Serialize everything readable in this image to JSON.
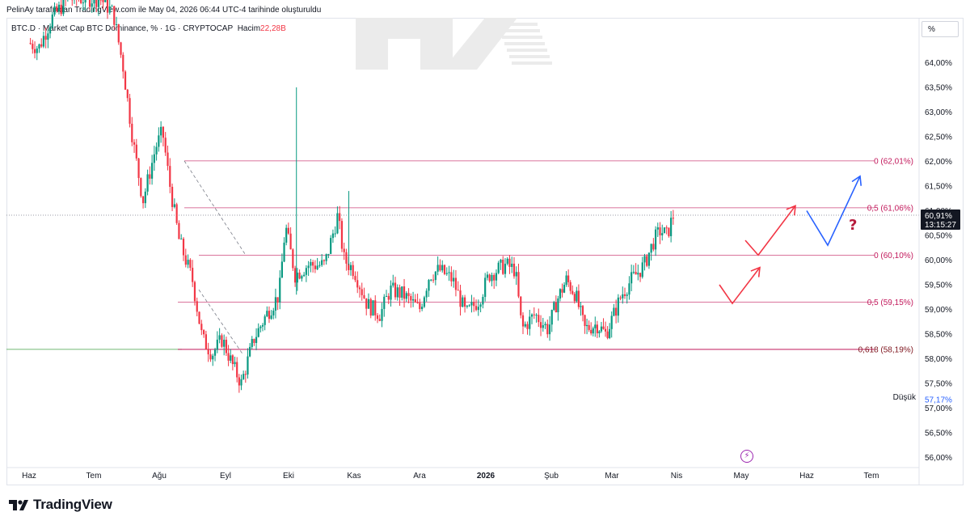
{
  "header": {
    "attribution": "PelinAy tarafından TradingView.com ile May 04, 2026 06:44 UTC-4 tarihinde oluşturuldu"
  },
  "legend": {
    "symbol": "BTC.D · Market Cap BTC Dominance, % · 1G · CRYPTOCAP",
    "volume_label": "Hacim",
    "volume_value": "22,28B"
  },
  "scale_button": "%",
  "branding": {
    "name": "TradingView"
  },
  "price_tag": {
    "value": "60,91%",
    "countdown": "13:15:27"
  },
  "low_tag": {
    "label": "Düşük",
    "value": "57,17%"
  },
  "colors": {
    "up": "#089981",
    "down": "#f23645",
    "fib_line": "#c2185b",
    "arrow_red": "#f23645",
    "arrow_blue": "#2962ff",
    "question": "#b71c3c",
    "green_line": "#43a047"
  },
  "chart_data": {
    "type": "candlestick",
    "symbol": "BTC.D",
    "unit": "%",
    "ylim": [
      55.8,
      65.3
    ],
    "y_ticks": [
      "56,00%",
      "56,50%",
      "57,00%",
      "57,50%",
      "58,00%",
      "58,50%",
      "59,00%",
      "59,50%",
      "60,00%",
      "60,50%",
      "61,00%",
      "61,50%",
      "62,00%",
      "62,50%",
      "63,00%",
      "63,50%",
      "64,00%"
    ],
    "x_ticks": [
      "Haz",
      "Tem",
      "Ağu",
      "Eyl",
      "Eki",
      "Kas",
      "Ara",
      "2026",
      "Şub",
      "Mar",
      "Nis",
      "May",
      "Haz",
      "Tem"
    ],
    "current_price": 60.91,
    "session_low": 57.17,
    "fib_levels": [
      {
        "label": "0 (62,01%)",
        "value": 62.01
      },
      {
        "label": "0,5 (61,06%)",
        "value": 61.06
      },
      {
        "label": "0 (60,10%)",
        "value": 60.1
      },
      {
        "label": "0,5 (59,15%)",
        "value": 59.15
      },
      {
        "label": "0,618 (58,19%)",
        "value": 58.19
      }
    ],
    "series_close": [
      {
        "m": 0.0,
        "v": 64.4
      },
      {
        "m": 0.15,
        "v": 64.3
      },
      {
        "m": 0.35,
        "v": 64.9
      },
      {
        "m": 0.6,
        "v": 65.3
      },
      {
        "m": 0.9,
        "v": 65.3
      },
      {
        "m": 1.1,
        "v": 65.3
      },
      {
        "m": 1.3,
        "v": 65.0
      },
      {
        "m": 1.45,
        "v": 63.9
      },
      {
        "m": 1.6,
        "v": 62.4
      },
      {
        "m": 1.75,
        "v": 61.2
      },
      {
        "m": 1.95,
        "v": 62.3
      },
      {
        "m": 2.05,
        "v": 62.6
      },
      {
        "m": 2.15,
        "v": 61.6
      },
      {
        "m": 2.3,
        "v": 60.4
      },
      {
        "m": 2.5,
        "v": 59.6
      },
      {
        "m": 2.65,
        "v": 58.4
      },
      {
        "m": 2.8,
        "v": 58.1
      },
      {
        "m": 2.95,
        "v": 58.4
      },
      {
        "m": 3.1,
        "v": 57.9
      },
      {
        "m": 3.25,
        "v": 57.5
      },
      {
        "m": 3.45,
        "v": 58.4
      },
      {
        "m": 3.65,
        "v": 58.9
      },
      {
        "m": 3.85,
        "v": 59.3
      },
      {
        "m": 3.95,
        "v": 60.7
      },
      {
        "m": 4.1,
        "v": 59.7
      },
      {
        "m": 4.3,
        "v": 59.9
      },
      {
        "m": 4.55,
        "v": 59.9
      },
      {
        "m": 4.75,
        "v": 60.9
      },
      {
        "m": 4.85,
        "v": 60.0
      },
      {
        "m": 5.0,
        "v": 59.8
      },
      {
        "m": 5.2,
        "v": 59.1
      },
      {
        "m": 5.4,
        "v": 58.9
      },
      {
        "m": 5.55,
        "v": 59.4
      },
      {
        "m": 5.75,
        "v": 59.3
      },
      {
        "m": 6.0,
        "v": 59.0
      },
      {
        "m": 6.15,
        "v": 59.7
      },
      {
        "m": 6.3,
        "v": 59.8
      },
      {
        "m": 6.5,
        "v": 59.6
      },
      {
        "m": 6.7,
        "v": 58.9
      },
      {
        "m": 6.9,
        "v": 59.2
      },
      {
        "m": 7.05,
        "v": 59.7
      },
      {
        "m": 7.3,
        "v": 59.9
      },
      {
        "m": 7.45,
        "v": 59.8
      },
      {
        "m": 7.55,
        "v": 58.6
      },
      {
        "m": 7.75,
        "v": 58.9
      },
      {
        "m": 7.95,
        "v": 58.6
      },
      {
        "m": 8.1,
        "v": 59.2
      },
      {
        "m": 8.25,
        "v": 59.6
      },
      {
        "m": 8.4,
        "v": 59.3
      },
      {
        "m": 8.55,
        "v": 58.6
      },
      {
        "m": 8.75,
        "v": 58.7
      },
      {
        "m": 8.9,
        "v": 58.5
      },
      {
        "m": 9.0,
        "v": 58.8
      },
      {
        "m": 9.15,
        "v": 59.3
      },
      {
        "m": 9.3,
        "v": 59.6
      },
      {
        "m": 9.5,
        "v": 59.9
      },
      {
        "m": 9.65,
        "v": 60.4
      },
      {
        "m": 9.75,
        "v": 60.6
      },
      {
        "m": 9.85,
        "v": 60.5
      },
      {
        "m": 9.95,
        "v": 60.91
      }
    ],
    "notable_wicks": [
      {
        "m": 4.12,
        "high": 63.5,
        "low": 59.3
      },
      {
        "m": 4.92,
        "high": 61.4,
        "low": 59.9
      }
    ]
  }
}
